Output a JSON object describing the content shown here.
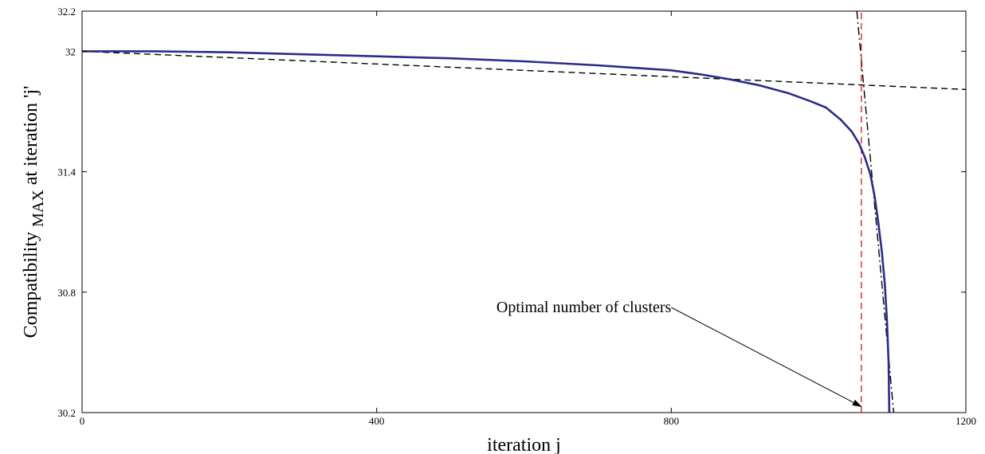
{
  "chart_data": {
    "type": "line",
    "xlabel": "iteration j",
    "ylabel": {
      "main": "Compatibility",
      "subscript": "MAX",
      "suffix": "at iteration 'j'"
    },
    "xlim": [
      0,
      1200
    ],
    "ylim": [
      30.2,
      32.2
    ],
    "x_ticks": [
      0,
      400,
      800,
      1200
    ],
    "y_ticks": [
      30.2,
      30.8,
      31.4,
      32,
      32.2
    ],
    "grid": false,
    "series": [
      {
        "style": "solid",
        "color": "#2b2b8c",
        "points": [
          [
            0,
            32.0
          ],
          [
            100,
            32.0
          ],
          [
            200,
            31.995
          ],
          [
            300,
            31.985
          ],
          [
            400,
            31.975
          ],
          [
            500,
            31.965
          ],
          [
            600,
            31.95
          ],
          [
            700,
            31.93
          ],
          [
            800,
            31.905
          ],
          [
            840,
            31.885
          ],
          [
            880,
            31.86
          ],
          [
            920,
            31.83
          ],
          [
            960,
            31.79
          ],
          [
            990,
            31.75
          ],
          [
            1010,
            31.72
          ],
          [
            1030,
            31.66
          ],
          [
            1045,
            31.6
          ],
          [
            1055,
            31.54
          ],
          [
            1063,
            31.47
          ],
          [
            1070,
            31.39
          ],
          [
            1076,
            31.28
          ],
          [
            1081,
            31.15
          ],
          [
            1086,
            31.0
          ],
          [
            1090,
            30.84
          ],
          [
            1093,
            30.65
          ],
          [
            1095,
            30.45
          ],
          [
            1096,
            30.2
          ]
        ]
      },
      {
        "style": "dashed",
        "color": "#000000",
        "points": [
          [
            0,
            32.0
          ],
          [
            1200,
            31.81
          ]
        ]
      },
      {
        "style": "dashdot",
        "color": "#000000",
        "points": [
          [
            1052,
            32.2
          ],
          [
            1102,
            30.2
          ]
        ]
      },
      {
        "style": "dashed",
        "color": "#d62728",
        "points": [
          [
            1058,
            30.2
          ],
          [
            1058,
            32.2
          ]
        ]
      }
    ],
    "annotations": [
      {
        "text": "Optimal number of clusters",
        "text_at": [
          800,
          30.7
        ],
        "arrow_to": [
          1058,
          30.23
        ]
      }
    ]
  }
}
